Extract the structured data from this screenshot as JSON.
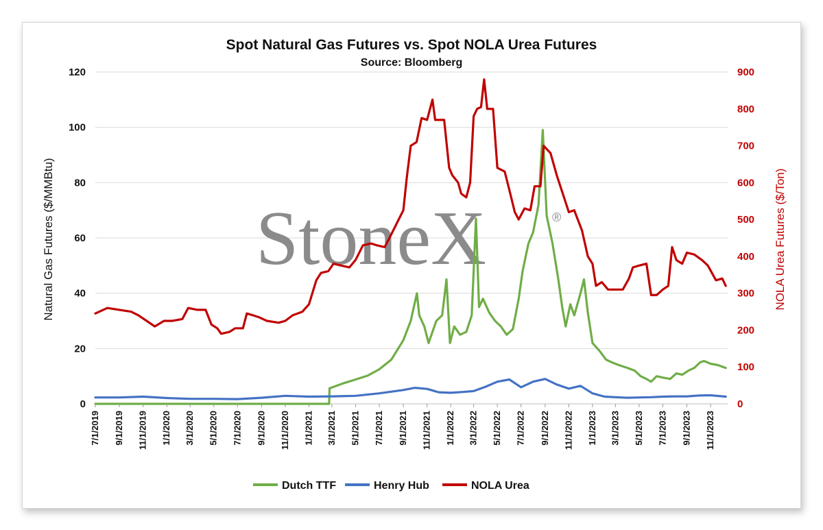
{
  "chart_data": {
    "type": "line",
    "title": "Spot Natural Gas Futures vs. Spot NOLA Urea Futures",
    "subtitle": "Source: Bloomberg",
    "watermark": "StoneX",
    "watermark_mark": "®",
    "ylabel": "Natural Gas Futures ($/MMBtu)",
    "y2label": "NOLA Urea Futures ($/Ton)",
    "ylim": [
      0,
      120
    ],
    "y2lim": [
      0,
      900
    ],
    "yticks": [
      "0",
      "20",
      "40",
      "60",
      "80",
      "100",
      "120"
    ],
    "y2ticks": [
      "0",
      "100",
      "200",
      "300",
      "400",
      "500",
      "600",
      "700",
      "800",
      "900"
    ],
    "xlim": [
      "2019-07-01",
      "2023-12-15"
    ],
    "xticks": [
      "7/1/2019",
      "9/1/2019",
      "11/1/2019",
      "1/1/2020",
      "3/1/2020",
      "5/1/2020",
      "7/1/2020",
      "9/1/2020",
      "11/1/2020",
      "1/1/2021",
      "3/1/2021",
      "5/1/2021",
      "7/1/2021",
      "9/1/2021",
      "11/1/2021",
      "1/1/2022",
      "3/1/2022",
      "5/1/2022",
      "7/1/2022",
      "9/1/2022",
      "11/1/2022",
      "1/1/2023",
      "3/1/2023",
      "5/1/2023",
      "7/1/2023",
      "9/1/2023",
      "11/1/2023"
    ],
    "grid": "horizontal",
    "legend": "bottom",
    "colors": {
      "left_axis": "#111111",
      "right_axis": "#c00000",
      "grid": "#d9d9d9"
    },
    "series": [
      {
        "name": "Dutch TTF",
        "axis": "left",
        "color": "#70ad47",
        "points": [
          [
            "2019-07-01",
            0
          ],
          [
            "2021-02-22",
            0
          ],
          [
            "2021-02-23",
            5.6
          ],
          [
            "2021-04-01",
            7.5
          ],
          [
            "2021-05-01",
            8.8
          ],
          [
            "2021-06-01",
            10.2
          ],
          [
            "2021-07-01",
            12.5
          ],
          [
            "2021-08-01",
            16
          ],
          [
            "2021-09-01",
            23
          ],
          [
            "2021-09-20",
            30
          ],
          [
            "2021-10-06",
            40
          ],
          [
            "2021-10-12",
            32
          ],
          [
            "2021-10-25",
            28
          ],
          [
            "2021-11-05",
            22
          ],
          [
            "2021-11-25",
            30
          ],
          [
            "2021-12-10",
            32
          ],
          [
            "2021-12-21",
            45
          ],
          [
            "2021-12-30",
            22
          ],
          [
            "2022-01-10",
            28
          ],
          [
            "2022-01-25",
            25
          ],
          [
            "2022-02-10",
            26
          ],
          [
            "2022-02-24",
            32
          ],
          [
            "2022-03-07",
            67
          ],
          [
            "2022-03-15",
            35
          ],
          [
            "2022-03-25",
            38
          ],
          [
            "2022-04-10",
            33
          ],
          [
            "2022-04-25",
            30
          ],
          [
            "2022-05-10",
            28
          ],
          [
            "2022-05-25",
            25
          ],
          [
            "2022-06-10",
            27
          ],
          [
            "2022-06-25",
            38
          ],
          [
            "2022-07-05",
            48
          ],
          [
            "2022-07-20",
            58
          ],
          [
            "2022-08-01",
            62
          ],
          [
            "2022-08-15",
            72
          ],
          [
            "2022-08-26",
            99
          ],
          [
            "2022-09-05",
            68
          ],
          [
            "2022-09-20",
            58
          ],
          [
            "2022-10-05",
            45
          ],
          [
            "2022-10-15",
            35
          ],
          [
            "2022-10-24",
            28
          ],
          [
            "2022-11-05",
            36
          ],
          [
            "2022-11-15",
            32
          ],
          [
            "2022-12-01",
            40
          ],
          [
            "2022-12-10",
            45
          ],
          [
            "2022-12-20",
            33
          ],
          [
            "2023-01-01",
            22
          ],
          [
            "2023-01-20",
            19
          ],
          [
            "2023-02-05",
            16
          ],
          [
            "2023-02-20",
            15
          ],
          [
            "2023-03-10",
            14
          ],
          [
            "2023-04-01",
            13
          ],
          [
            "2023-04-20",
            12
          ],
          [
            "2023-05-05",
            10
          ],
          [
            "2023-05-20",
            9
          ],
          [
            "2023-06-01",
            8
          ],
          [
            "2023-06-15",
            10
          ],
          [
            "2023-07-01",
            9.5
          ],
          [
            "2023-07-20",
            9
          ],
          [
            "2023-08-05",
            11
          ],
          [
            "2023-08-20",
            10.5
          ],
          [
            "2023-09-05",
            12
          ],
          [
            "2023-09-20",
            13
          ],
          [
            "2023-10-05",
            15
          ],
          [
            "2023-10-15",
            15.5
          ],
          [
            "2023-11-01",
            14.5
          ],
          [
            "2023-11-20",
            14
          ],
          [
            "2023-12-10",
            13
          ]
        ]
      },
      {
        "name": "Henry Hub",
        "axis": "left",
        "color": "#4472c4",
        "points": [
          [
            "2019-07-01",
            2.3
          ],
          [
            "2019-09-01",
            2.3
          ],
          [
            "2019-11-01",
            2.6
          ],
          [
            "2020-01-01",
            2.1
          ],
          [
            "2020-03-01",
            1.8
          ],
          [
            "2020-05-01",
            1.8
          ],
          [
            "2020-07-01",
            1.7
          ],
          [
            "2020-09-01",
            2.2
          ],
          [
            "2020-11-01",
            2.9
          ],
          [
            "2021-01-01",
            2.6
          ],
          [
            "2021-03-01",
            2.7
          ],
          [
            "2021-05-01",
            2.9
          ],
          [
            "2021-07-01",
            3.8
          ],
          [
            "2021-09-01",
            5
          ],
          [
            "2021-10-01",
            5.8
          ],
          [
            "2021-11-01",
            5.4
          ],
          [
            "2021-12-01",
            4.2
          ],
          [
            "2022-01-01",
            4
          ],
          [
            "2022-02-01",
            4.3
          ],
          [
            "2022-03-01",
            4.6
          ],
          [
            "2022-04-01",
            6.2
          ],
          [
            "2022-05-01",
            8
          ],
          [
            "2022-06-01",
            8.8
          ],
          [
            "2022-07-01",
            6
          ],
          [
            "2022-08-01",
            8
          ],
          [
            "2022-09-01",
            9
          ],
          [
            "2022-10-01",
            7
          ],
          [
            "2022-11-01",
            5.5
          ],
          [
            "2022-12-01",
            6.5
          ],
          [
            "2023-01-01",
            3.8
          ],
          [
            "2023-02-01",
            2.6
          ],
          [
            "2023-03-01",
            2.4
          ],
          [
            "2023-04-01",
            2.2
          ],
          [
            "2023-05-01",
            2.3
          ],
          [
            "2023-06-01",
            2.4
          ],
          [
            "2023-07-01",
            2.6
          ],
          [
            "2023-08-01",
            2.7
          ],
          [
            "2023-09-01",
            2.7
          ],
          [
            "2023-10-01",
            3
          ],
          [
            "2023-11-01",
            3.1
          ],
          [
            "2023-12-10",
            2.6
          ]
        ]
      },
      {
        "name": "NOLA Urea",
        "axis": "right",
        "color": "#c00000",
        "points": [
          [
            "2019-07-01",
            245
          ],
          [
            "2019-08-01",
            260
          ],
          [
            "2019-09-01",
            255
          ],
          [
            "2019-10-01",
            250
          ],
          [
            "2019-10-20",
            240
          ],
          [
            "2019-11-10",
            225
          ],
          [
            "2019-12-01",
            210
          ],
          [
            "2019-12-25",
            225
          ],
          [
            "2020-01-15",
            225
          ],
          [
            "2020-02-10",
            230
          ],
          [
            "2020-02-25",
            260
          ],
          [
            "2020-03-20",
            255
          ],
          [
            "2020-04-10",
            255
          ],
          [
            "2020-04-25",
            215
          ],
          [
            "2020-05-10",
            205
          ],
          [
            "2020-05-20",
            190
          ],
          [
            "2020-06-10",
            195
          ],
          [
            "2020-06-25",
            205
          ],
          [
            "2020-07-15",
            205
          ],
          [
            "2020-07-25",
            245
          ],
          [
            "2020-08-10",
            240
          ],
          [
            "2020-08-25",
            235
          ],
          [
            "2020-09-15",
            225
          ],
          [
            "2020-10-15",
            220
          ],
          [
            "2020-11-01",
            225
          ],
          [
            "2020-11-20",
            240
          ],
          [
            "2020-12-15",
            250
          ],
          [
            "2021-01-01",
            270
          ],
          [
            "2021-01-20",
            335
          ],
          [
            "2021-02-01",
            355
          ],
          [
            "2021-02-20",
            360
          ],
          [
            "2021-03-05",
            380
          ],
          [
            "2021-03-25",
            375
          ],
          [
            "2021-04-15",
            370
          ],
          [
            "2021-05-01",
            390
          ],
          [
            "2021-05-20",
            430
          ],
          [
            "2021-06-10",
            435
          ],
          [
            "2021-06-25",
            430
          ],
          [
            "2021-07-15",
            425
          ],
          [
            "2021-08-01",
            460
          ],
          [
            "2021-08-20",
            500
          ],
          [
            "2021-09-01",
            525
          ],
          [
            "2021-09-10",
            615
          ],
          [
            "2021-09-20",
            700
          ],
          [
            "2021-10-05",
            710
          ],
          [
            "2021-10-18",
            775
          ],
          [
            "2021-11-01",
            770
          ],
          [
            "2021-11-15",
            825
          ],
          [
            "2021-11-22",
            770
          ],
          [
            "2021-12-15",
            770
          ],
          [
            "2021-12-28",
            640
          ],
          [
            "2022-01-05",
            620
          ],
          [
            "2022-01-20",
            600
          ],
          [
            "2022-01-28",
            570
          ],
          [
            "2022-02-10",
            560
          ],
          [
            "2022-02-20",
            600
          ],
          [
            "2022-03-01",
            780
          ],
          [
            "2022-03-10",
            800
          ],
          [
            "2022-03-20",
            805
          ],
          [
            "2022-03-28",
            880
          ],
          [
            "2022-04-05",
            800
          ],
          [
            "2022-04-20",
            800
          ],
          [
            "2022-05-01",
            640
          ],
          [
            "2022-05-20",
            630
          ],
          [
            "2022-06-01",
            580
          ],
          [
            "2022-06-15",
            520
          ],
          [
            "2022-06-25",
            500
          ],
          [
            "2022-07-10",
            530
          ],
          [
            "2022-07-25",
            525
          ],
          [
            "2022-08-05",
            590
          ],
          [
            "2022-08-20",
            590
          ],
          [
            "2022-08-28",
            700
          ],
          [
            "2022-09-15",
            680
          ],
          [
            "2022-10-01",
            620
          ],
          [
            "2022-10-15",
            575
          ],
          [
            "2022-11-01",
            520
          ],
          [
            "2022-11-15",
            525
          ],
          [
            "2022-12-05",
            470
          ],
          [
            "2022-12-20",
            400
          ],
          [
            "2023-01-01",
            380
          ],
          [
            "2023-01-10",
            320
          ],
          [
            "2023-01-25",
            330
          ],
          [
            "2023-02-10",
            310
          ],
          [
            "2023-03-01",
            310
          ],
          [
            "2023-03-20",
            310
          ],
          [
            "2023-04-05",
            340
          ],
          [
            "2023-04-15",
            370
          ],
          [
            "2023-05-01",
            375
          ],
          [
            "2023-05-20",
            380
          ],
          [
            "2023-06-01",
            295
          ],
          [
            "2023-06-15",
            295
          ],
          [
            "2023-07-01",
            310
          ],
          [
            "2023-07-15",
            320
          ],
          [
            "2023-07-25",
            425
          ],
          [
            "2023-08-05",
            390
          ],
          [
            "2023-08-20",
            380
          ],
          [
            "2023-09-01",
            410
          ],
          [
            "2023-09-20",
            405
          ],
          [
            "2023-10-10",
            390
          ],
          [
            "2023-10-25",
            375
          ],
          [
            "2023-11-15",
            335
          ],
          [
            "2023-12-01",
            340
          ],
          [
            "2023-12-10",
            320
          ]
        ]
      }
    ]
  }
}
